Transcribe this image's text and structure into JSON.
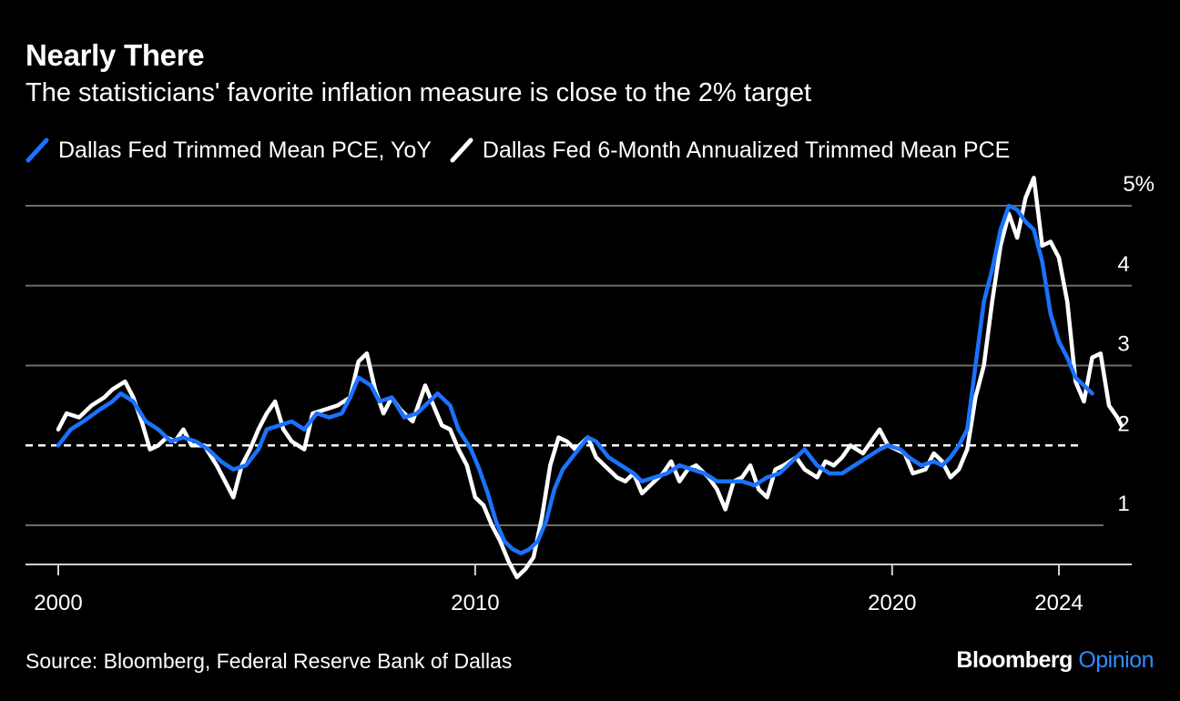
{
  "header": {
    "title": "Nearly There",
    "subtitle": "The statisticians' favorite inflation measure is close to the 2% target"
  },
  "footer": {
    "source": "Source: Bloomberg, Federal Reserve Bank of Dallas",
    "brand_main": "Bloomberg",
    "brand_accent": "Opinion"
  },
  "colors": {
    "background": "#000000",
    "yoy_series": "#1a72ff",
    "six_month_series": "#ffffff",
    "gridline": "#6b6b6b",
    "target_line": "#ffffff"
  },
  "chart_data": {
    "type": "line",
    "title": "Nearly There",
    "subtitle": "The statisticians' favorite inflation measure is close to the 2% target",
    "xlabel": "",
    "ylabel": "",
    "xlim": [
      1999.6,
      2025.7
    ],
    "ylim": [
      0.5,
      5.5
    ],
    "x_ticks": [
      2000,
      2010,
      2020,
      2024
    ],
    "x_tick_labels": [
      "2000",
      "2010",
      "2020",
      "2024"
    ],
    "y_ticks": [
      1,
      2,
      3,
      4,
      5
    ],
    "y_tick_labels": [
      "1",
      "2",
      "3",
      "4",
      "5%"
    ],
    "y_axis_side": "right",
    "grid": true,
    "reference_line": {
      "y": 2,
      "style": "dashed",
      "label": "2% target"
    },
    "legend": "top",
    "series": [
      {
        "name": "Dallas Fed Trimmed Mean PCE, YoY",
        "color": "#1a72ff",
        "points": [
          [
            2000.0,
            2.0
          ],
          [
            2000.3,
            2.2
          ],
          [
            2000.6,
            2.3
          ],
          [
            2001.0,
            2.45
          ],
          [
            2001.3,
            2.55
          ],
          [
            2001.5,
            2.65
          ],
          [
            2001.8,
            2.55
          ],
          [
            2002.1,
            2.3
          ],
          [
            2002.4,
            2.2
          ],
          [
            2002.7,
            2.05
          ],
          [
            2003.0,
            2.1
          ],
          [
            2003.3,
            2.05
          ],
          [
            2003.6,
            1.95
          ],
          [
            2003.9,
            1.8
          ],
          [
            2004.2,
            1.7
          ],
          [
            2004.5,
            1.75
          ],
          [
            2004.8,
            1.95
          ],
          [
            2005.0,
            2.2
          ],
          [
            2005.3,
            2.25
          ],
          [
            2005.6,
            2.3
          ],
          [
            2005.9,
            2.2
          ],
          [
            2006.2,
            2.4
          ],
          [
            2006.5,
            2.35
          ],
          [
            2006.8,
            2.4
          ],
          [
            2007.0,
            2.6
          ],
          [
            2007.2,
            2.85
          ],
          [
            2007.5,
            2.75
          ],
          [
            2007.7,
            2.55
          ],
          [
            2008.0,
            2.6
          ],
          [
            2008.3,
            2.35
          ],
          [
            2008.6,
            2.4
          ],
          [
            2008.9,
            2.55
          ],
          [
            2009.1,
            2.65
          ],
          [
            2009.4,
            2.5
          ],
          [
            2009.6,
            2.2
          ],
          [
            2009.9,
            1.95
          ],
          [
            2010.1,
            1.7
          ],
          [
            2010.3,
            1.4
          ],
          [
            2010.5,
            1.05
          ],
          [
            2010.7,
            0.8
          ],
          [
            2010.9,
            0.7
          ],
          [
            2011.1,
            0.65
          ],
          [
            2011.3,
            0.7
          ],
          [
            2011.5,
            0.8
          ],
          [
            2011.7,
            1.05
          ],
          [
            2011.9,
            1.45
          ],
          [
            2012.1,
            1.7
          ],
          [
            2012.4,
            1.9
          ],
          [
            2012.7,
            2.1
          ],
          [
            2012.9,
            2.05
          ],
          [
            2013.2,
            1.85
          ],
          [
            2013.5,
            1.75
          ],
          [
            2013.8,
            1.65
          ],
          [
            2014.0,
            1.55
          ],
          [
            2014.3,
            1.6
          ],
          [
            2014.6,
            1.65
          ],
          [
            2014.9,
            1.75
          ],
          [
            2015.2,
            1.7
          ],
          [
            2015.5,
            1.65
          ],
          [
            2015.8,
            1.55
          ],
          [
            2016.1,
            1.55
          ],
          [
            2016.4,
            1.55
          ],
          [
            2016.7,
            1.5
          ],
          [
            2017.0,
            1.6
          ],
          [
            2017.3,
            1.65
          ],
          [
            2017.6,
            1.8
          ],
          [
            2017.9,
            1.95
          ],
          [
            2018.2,
            1.75
          ],
          [
            2018.5,
            1.65
          ],
          [
            2018.8,
            1.65
          ],
          [
            2019.1,
            1.75
          ],
          [
            2019.4,
            1.85
          ],
          [
            2019.7,
            1.95
          ],
          [
            2019.9,
            2.0
          ],
          [
            2020.2,
            1.95
          ],
          [
            2020.4,
            1.85
          ],
          [
            2020.7,
            1.75
          ],
          [
            2021.0,
            1.8
          ],
          [
            2021.2,
            1.75
          ],
          [
            2021.4,
            1.85
          ],
          [
            2021.6,
            2.0
          ],
          [
            2021.8,
            2.2
          ],
          [
            2022.0,
            3.0
          ],
          [
            2022.2,
            3.8
          ],
          [
            2022.4,
            4.2
          ],
          [
            2022.6,
            4.7
          ],
          [
            2022.8,
            5.0
          ],
          [
            2023.0,
            4.95
          ],
          [
            2023.2,
            4.8
          ],
          [
            2023.4,
            4.7
          ],
          [
            2023.6,
            4.3
          ],
          [
            2023.8,
            3.65
          ],
          [
            2024.0,
            3.3
          ],
          [
            2024.2,
            3.1
          ],
          [
            2024.4,
            2.85
          ],
          [
            2024.6,
            2.75
          ],
          [
            2024.8,
            2.65
          ]
        ]
      },
      {
        "name": "Dallas Fed 6-Month Annualized Trimmed Mean PCE",
        "color": "#ffffff",
        "points": [
          [
            2000.0,
            2.2
          ],
          [
            2000.2,
            2.4
          ],
          [
            2000.5,
            2.35
          ],
          [
            2000.8,
            2.5
          ],
          [
            2001.1,
            2.6
          ],
          [
            2001.3,
            2.7
          ],
          [
            2001.6,
            2.8
          ],
          [
            2001.8,
            2.6
          ],
          [
            2002.0,
            2.3
          ],
          [
            2002.2,
            1.95
          ],
          [
            2002.4,
            2.0
          ],
          [
            2002.6,
            2.1
          ],
          [
            2002.8,
            2.05
          ],
          [
            2003.0,
            2.2
          ],
          [
            2003.2,
            2.0
          ],
          [
            2003.5,
            2.0
          ],
          [
            2003.8,
            1.75
          ],
          [
            2004.0,
            1.55
          ],
          [
            2004.2,
            1.35
          ],
          [
            2004.4,
            1.75
          ],
          [
            2004.6,
            1.95
          ],
          [
            2004.8,
            2.2
          ],
          [
            2005.0,
            2.4
          ],
          [
            2005.2,
            2.55
          ],
          [
            2005.4,
            2.2
          ],
          [
            2005.6,
            2.05
          ],
          [
            2005.9,
            1.95
          ],
          [
            2006.1,
            2.4
          ],
          [
            2006.4,
            2.45
          ],
          [
            2006.7,
            2.5
          ],
          [
            2007.0,
            2.6
          ],
          [
            2007.2,
            3.05
          ],
          [
            2007.4,
            3.15
          ],
          [
            2007.6,
            2.7
          ],
          [
            2007.8,
            2.4
          ],
          [
            2008.0,
            2.6
          ],
          [
            2008.2,
            2.45
          ],
          [
            2008.5,
            2.3
          ],
          [
            2008.8,
            2.75
          ],
          [
            2009.0,
            2.5
          ],
          [
            2009.2,
            2.25
          ],
          [
            2009.4,
            2.2
          ],
          [
            2009.6,
            1.95
          ],
          [
            2009.8,
            1.75
          ],
          [
            2010.0,
            1.35
          ],
          [
            2010.2,
            1.25
          ],
          [
            2010.4,
            1.0
          ],
          [
            2010.6,
            0.8
          ],
          [
            2010.8,
            0.55
          ],
          [
            2011.0,
            0.35
          ],
          [
            2011.2,
            0.45
          ],
          [
            2011.4,
            0.6
          ],
          [
            2011.6,
            1.1
          ],
          [
            2011.8,
            1.75
          ],
          [
            2012.0,
            2.1
          ],
          [
            2012.2,
            2.05
          ],
          [
            2012.4,
            1.95
          ],
          [
            2012.7,
            2.1
          ],
          [
            2012.9,
            1.85
          ],
          [
            2013.1,
            1.75
          ],
          [
            2013.4,
            1.6
          ],
          [
            2013.6,
            1.55
          ],
          [
            2013.8,
            1.65
          ],
          [
            2014.0,
            1.4
          ],
          [
            2014.2,
            1.5
          ],
          [
            2014.5,
            1.65
          ],
          [
            2014.7,
            1.8
          ],
          [
            2014.9,
            1.55
          ],
          [
            2015.1,
            1.7
          ],
          [
            2015.3,
            1.75
          ],
          [
            2015.6,
            1.6
          ],
          [
            2015.8,
            1.45
          ],
          [
            2016.0,
            1.2
          ],
          [
            2016.2,
            1.55
          ],
          [
            2016.4,
            1.6
          ],
          [
            2016.6,
            1.75
          ],
          [
            2016.8,
            1.45
          ],
          [
            2017.0,
            1.35
          ],
          [
            2017.2,
            1.7
          ],
          [
            2017.4,
            1.75
          ],
          [
            2017.7,
            1.85
          ],
          [
            2017.9,
            1.7
          ],
          [
            2018.2,
            1.6
          ],
          [
            2018.4,
            1.8
          ],
          [
            2018.6,
            1.75
          ],
          [
            2018.8,
            1.85
          ],
          [
            2019.0,
            2.0
          ],
          [
            2019.3,
            1.9
          ],
          [
            2019.5,
            2.05
          ],
          [
            2019.7,
            2.2
          ],
          [
            2019.9,
            2.0
          ],
          [
            2020.1,
            1.95
          ],
          [
            2020.3,
            1.9
          ],
          [
            2020.5,
            1.65
          ],
          [
            2020.8,
            1.7
          ],
          [
            2021.0,
            1.9
          ],
          [
            2021.2,
            1.8
          ],
          [
            2021.4,
            1.6
          ],
          [
            2021.6,
            1.7
          ],
          [
            2021.8,
            1.95
          ],
          [
            2022.0,
            2.6
          ],
          [
            2022.2,
            3.0
          ],
          [
            2022.4,
            3.8
          ],
          [
            2022.6,
            4.5
          ],
          [
            2022.8,
            4.9
          ],
          [
            2023.0,
            4.6
          ],
          [
            2023.2,
            5.1
          ],
          [
            2023.4,
            5.35
          ],
          [
            2023.6,
            4.5
          ],
          [
            2023.8,
            4.55
          ],
          [
            2024.0,
            4.35
          ],
          [
            2024.2,
            3.8
          ],
          [
            2024.4,
            2.8
          ],
          [
            2024.6,
            2.55
          ],
          [
            2024.8,
            3.1
          ],
          [
            2025.0,
            3.15
          ],
          [
            2025.2,
            2.5
          ],
          [
            2025.4,
            2.35
          ],
          [
            2025.5,
            2.25
          ]
        ]
      }
    ]
  }
}
